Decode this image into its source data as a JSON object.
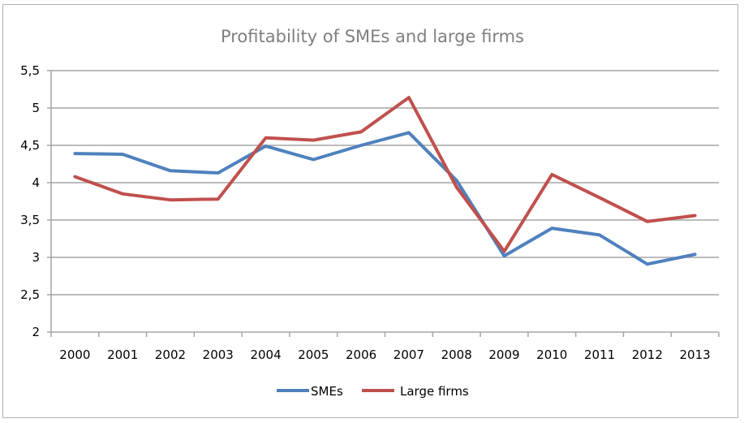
{
  "chart_data": {
    "type": "line",
    "title": "Profitability of SMEs and large firms",
    "xlabel": "",
    "ylabel": "",
    "categories": [
      "2000",
      "2001",
      "2002",
      "2003",
      "2004",
      "2005",
      "2006",
      "2007",
      "2008",
      "2009",
      "2010",
      "2011",
      "2012",
      "2013"
    ],
    "ylim": [
      2,
      5.5
    ],
    "yticks": [
      2,
      2.5,
      3,
      3.5,
      4,
      4.5,
      5,
      5.5
    ],
    "ytick_labels": [
      "2",
      "2,5",
      "3",
      "3,5",
      "4",
      "4,5",
      "5",
      "5,5"
    ],
    "grid": true,
    "legend_position": "bottom",
    "series": [
      {
        "name": "SMEs",
        "color": "#4f81bd",
        "values": [
          4.39,
          4.38,
          4.16,
          4.13,
          4.49,
          4.31,
          4.5,
          4.67,
          4.03,
          3.02,
          3.39,
          3.3,
          2.91,
          3.04
        ]
      },
      {
        "name": "Large firms",
        "color": "#c0504d",
        "values": [
          4.08,
          3.85,
          3.77,
          3.78,
          4.6,
          4.57,
          4.68,
          5.14,
          3.94,
          3.08,
          4.11,
          3.8,
          3.48,
          3.56
        ]
      }
    ]
  }
}
